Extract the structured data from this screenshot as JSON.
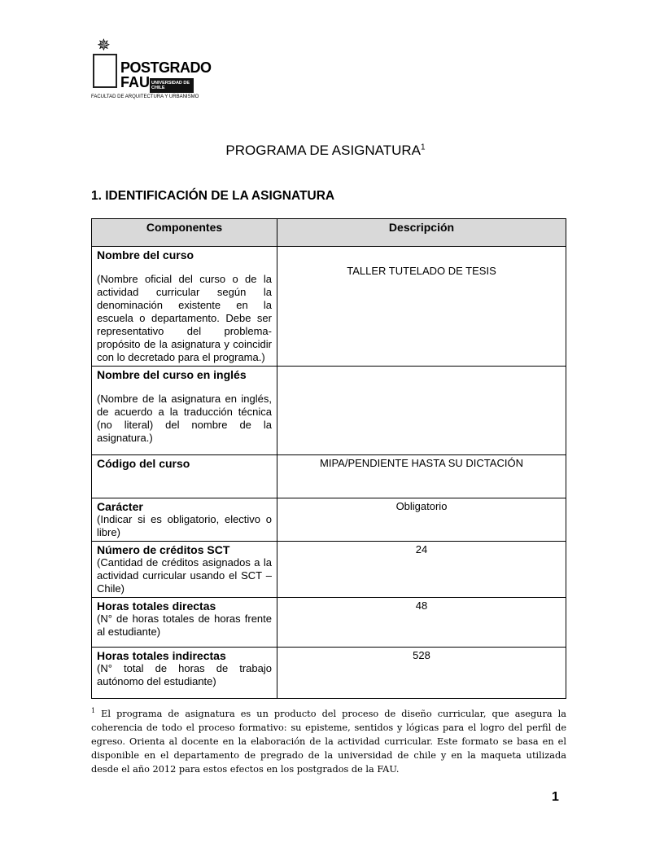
{
  "logo": {
    "line1": "POSTGRADO",
    "line2": "FAU",
    "badge": "UNIVERSIDAD DE CHILE",
    "subtitle": "FACULTAD DE ARQUITECTURA Y URBANISMO"
  },
  "title": "PROGRAMA DE ASIGNATURA",
  "title_footnote_mark": "1",
  "section_heading": "1. IDENTIFICACIÓN DE LA ASIGNATURA",
  "table": {
    "headers": [
      "Componentes",
      "Descripción"
    ],
    "rows": [
      {
        "label": "Nombre del curso",
        "desc": "(Nombre oficial del curso o de la actividad curricular según la denominación existente en la escuela o departamento. Debe ser representativo del problema-propósito de la asignatura y coincidir con lo decretado para el programa.)",
        "value": "TALLER TUTELADO DE TESIS"
      },
      {
        "label": "Nombre del curso en inglés",
        "desc": "(Nombre de la asignatura en inglés, de acuerdo a la traducción técnica (no literal) del nombre de la asignatura.)",
        "value": ""
      },
      {
        "label": "Código del curso",
        "desc": "",
        "value": "MIPA/PENDIENTE HASTA SU DICTACIÓN"
      },
      {
        "label": "Carácter",
        "desc": "(Indicar si es obligatorio, electivo o libre)",
        "value": "Obligatorio"
      },
      {
        "label": "Número de créditos SCT",
        "desc": "(Cantidad de créditos asignados a la actividad curricular usando el SCT – Chile)",
        "value": "24"
      },
      {
        "label": "Horas totales directas",
        "desc": "(N° de horas totales de horas frente al estudiante)",
        "value": "48"
      },
      {
        "label": "Horas totales indirectas",
        "desc": "(N° total de horas de trabajo autónomo del estudiante)",
        "value": "528"
      }
    ]
  },
  "footnote": {
    "mark": "1",
    "text": " El programa de asignatura es un producto del proceso de diseño curricular, que asegura la coherencia de todo el proceso formativo: su episteme, sentidos y lógicas para el logro del perfil de egreso. Orienta al docente en la elaboración de la actividad curricular. Este formato se basa en el disponible en el departamento de pregrado de la universidad de chile y en la maqueta utilizada desde el año 2012 para estos efectos en los postgrados de la FAU."
  },
  "page_number": "1"
}
